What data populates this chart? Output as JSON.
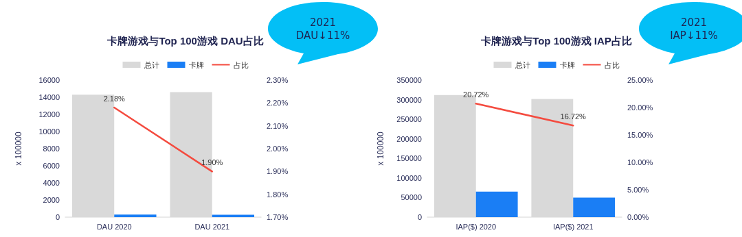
{
  "chart_data": [
    {
      "type": "bar",
      "title": "卡牌游戏与Top 100游戏 DAU占比",
      "ylabel": "x 100000",
      "categories": [
        "DAU 2020",
        "DAU 2021"
      ],
      "series": [
        {
          "name": "总计",
          "color": "#d9d9d9",
          "values": [
            14300,
            14600
          ]
        },
        {
          "name": "卡牌",
          "color": "#1a7ef5",
          "values": [
            310,
            280
          ]
        },
        {
          "name": "占比",
          "type": "line",
          "axis": "y2",
          "color": "#f44b3f",
          "values": [
            2.18,
            1.9
          ],
          "value_labels": [
            "2.18%",
            "1.90%"
          ]
        }
      ],
      "ylim": [
        0,
        16000
      ],
      "yticks": [
        0,
        2000,
        4000,
        6000,
        8000,
        10000,
        12000,
        14000,
        16000
      ],
      "y2lim": [
        1.7,
        2.3
      ],
      "y2ticks": [
        {
          "value": 1.7,
          "label": "1.70%"
        },
        {
          "value": 1.8,
          "label": "1.80%"
        },
        {
          "value": 1.9,
          "label": "1.90%"
        },
        {
          "value": 2.0,
          "label": "2.00%"
        },
        {
          "value": 2.1,
          "label": "2.10%"
        },
        {
          "value": 2.2,
          "label": "2.20%"
        },
        {
          "value": 2.3,
          "label": "2.30%"
        }
      ],
      "annotations": [
        "2021\nDAU↓11%"
      ],
      "legend": "top",
      "grid": false,
      "marker": "none"
    },
    {
      "type": "bar",
      "title": "卡牌游戏与Top 100游戏 IAP占比",
      "ylabel": "x 100000",
      "categories": [
        "IAP($) 2020",
        "IAP($) 2021"
      ],
      "series": [
        {
          "name": "总计",
          "color": "#d9d9d9",
          "values": [
            312000,
            302000
          ]
        },
        {
          "name": "卡牌",
          "color": "#1a7ef5",
          "values": [
            65000,
            50000
          ]
        },
        {
          "name": "占比",
          "type": "line",
          "axis": "y2",
          "color": "#f44b3f",
          "values": [
            20.72,
            16.72
          ],
          "value_labels": [
            "20.72%",
            "16.72%"
          ]
        }
      ],
      "ylim": [
        0,
        350000
      ],
      "yticks": [
        0,
        50000,
        100000,
        150000,
        200000,
        250000,
        300000,
        350000
      ],
      "y2lim": [
        0,
        25
      ],
      "y2ticks": [
        {
          "value": 0,
          "label": "0.00%"
        },
        {
          "value": 5,
          "label": "5.00%"
        },
        {
          "value": 10,
          "label": "10.00%"
        },
        {
          "value": 15,
          "label": "15.00%"
        },
        {
          "value": 20,
          "label": "20.00%"
        },
        {
          "value": 25,
          "label": "25.00%"
        }
      ],
      "annotations": [
        "2021\nIAP↓11%"
      ],
      "legend": "top",
      "grid": false,
      "marker": "none"
    }
  ]
}
